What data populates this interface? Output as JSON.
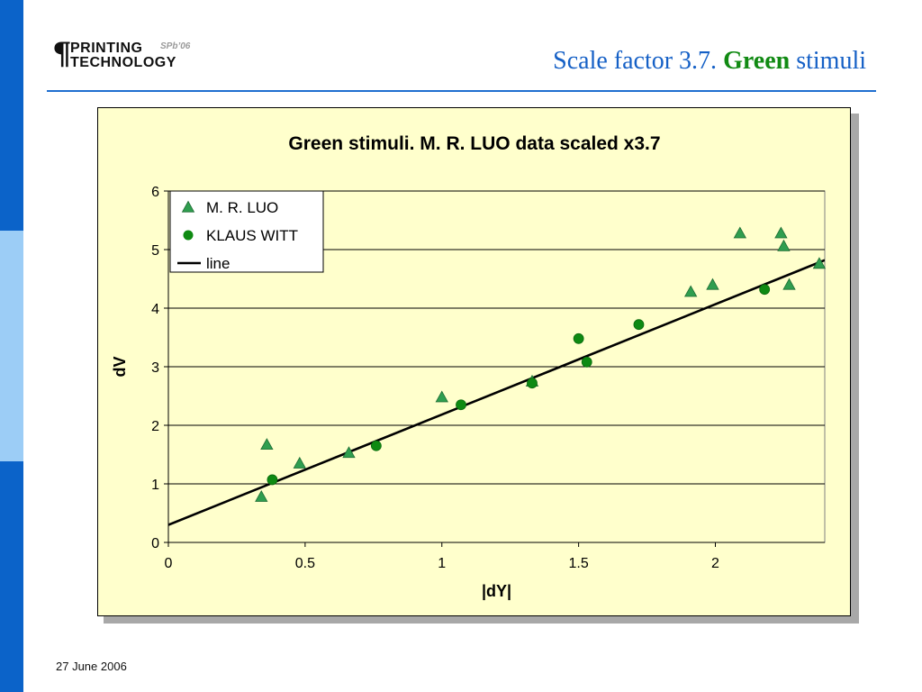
{
  "logo": {
    "pilcrow": "¶",
    "line1": "PRINTING",
    "line2": "TECHNOLOGY",
    "sub": "SPb’06"
  },
  "slide_title": {
    "prefix": "Scale factor 3.7. ",
    "accent": "Green",
    "suffix": " stimuli"
  },
  "footer": {
    "date": "27 June 2006"
  },
  "colors": {
    "luo_marker": "#2f9e4f",
    "witt_marker": "#0e8a12",
    "line": "#000000",
    "plot_bg": "#ffffcc",
    "title_blue": "#1560c6",
    "title_green": "#118a13"
  },
  "chart_data": {
    "type": "scatter",
    "title": "Green stimuli. M. R. LUO data scaled x3.7",
    "xlabel": "|dY|",
    "ylabel": "dV",
    "xlim": [
      0,
      2.4
    ],
    "ylim": [
      0,
      6
    ],
    "x_ticks": [
      "0",
      "0.5",
      "1",
      "1.5",
      "2"
    ],
    "x_tick_values": [
      0,
      0.5,
      1,
      1.5,
      2
    ],
    "y_ticks": [
      "0",
      "1",
      "2",
      "3",
      "4",
      "5",
      "6"
    ],
    "y_tick_values": [
      0,
      1,
      2,
      3,
      4,
      5,
      6
    ],
    "grid": "horizontal",
    "legend_position": "top-left",
    "series": [
      {
        "name": "M. R. LUO",
        "marker": "triangle",
        "points": [
          [
            0.34,
            0.78
          ],
          [
            0.36,
            1.67
          ],
          [
            0.48,
            1.35
          ],
          [
            0.66,
            1.53
          ],
          [
            1.0,
            2.48
          ],
          [
            1.33,
            2.75
          ],
          [
            1.91,
            4.28
          ],
          [
            1.99,
            4.4
          ],
          [
            2.09,
            5.28
          ],
          [
            2.24,
            5.28
          ],
          [
            2.25,
            5.06
          ],
          [
            2.27,
            4.4
          ],
          [
            2.38,
            4.76
          ]
        ]
      },
      {
        "name": "KLAUS WITT",
        "marker": "circle",
        "points": [
          [
            0.38,
            1.07
          ],
          [
            0.76,
            1.65
          ],
          [
            1.07,
            2.35
          ],
          [
            1.33,
            2.72
          ],
          [
            1.5,
            3.48
          ],
          [
            1.53,
            3.08
          ],
          [
            1.72,
            3.72
          ],
          [
            2.18,
            4.32
          ]
        ]
      },
      {
        "name": "line",
        "marker": "line",
        "points": [
          [
            0,
            0.3
          ],
          [
            2.4,
            4.82
          ]
        ]
      }
    ]
  }
}
